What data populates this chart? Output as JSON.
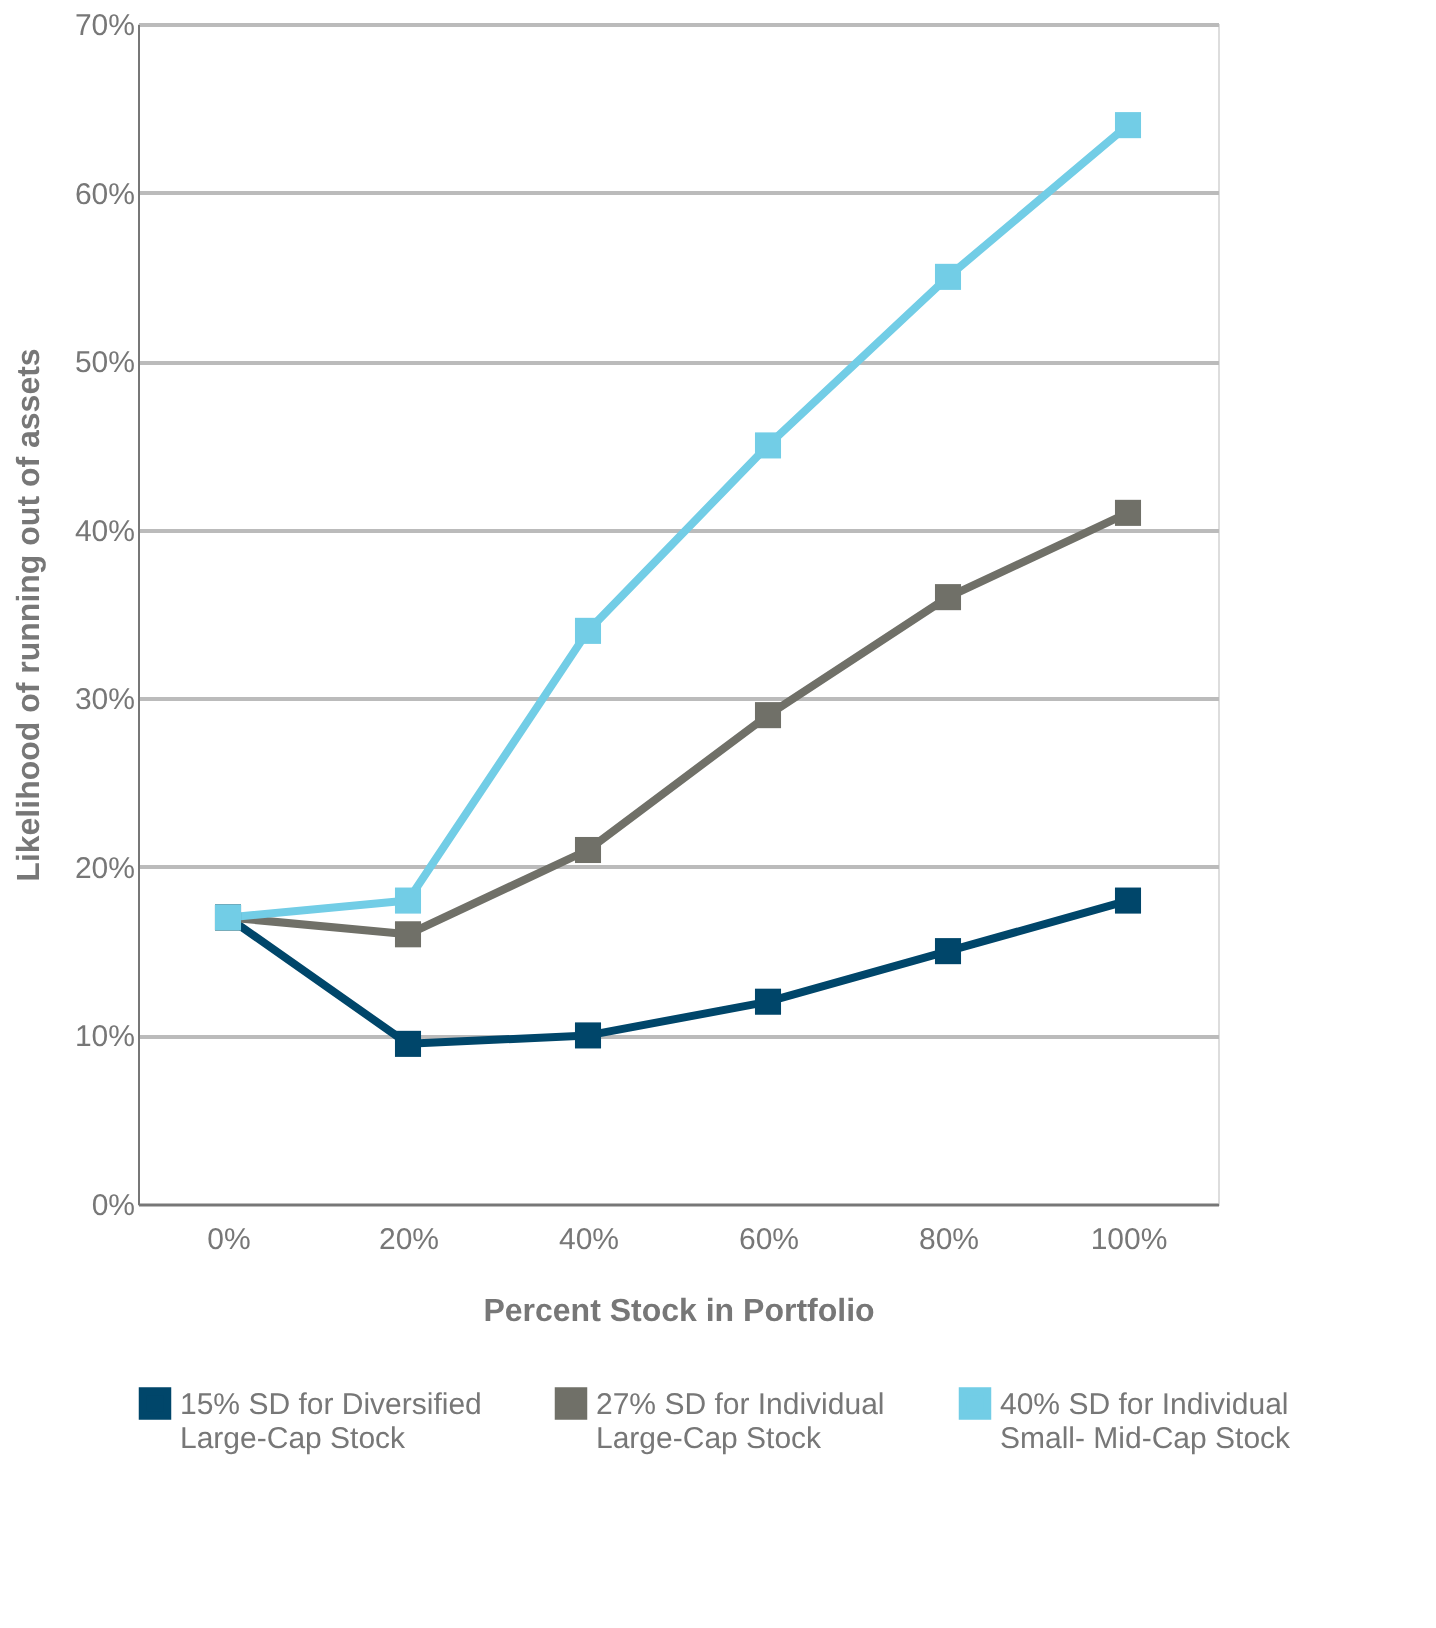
{
  "chart_data": {
    "type": "line",
    "xlabel": "Percent Stock in Portfolio",
    "ylabel": "Likelihood of running out of assets",
    "categories": [
      "0%",
      "20%",
      "40%",
      "60%",
      "80%",
      "100%"
    ],
    "series": [
      {
        "name": "15% SD for Diversified Large-Cap Stock",
        "color": "#00466a",
        "values": [
          17,
          9.5,
          10,
          12,
          15,
          18
        ]
      },
      {
        "name": "27% SD for Individual Large-Cap Stock",
        "color": "#707068",
        "values": [
          17,
          16,
          21,
          29,
          36,
          41
        ]
      },
      {
        "name": "40% SD for Individual Small- Mid-Cap Stock",
        "color": "#72cde6",
        "values": [
          17,
          18,
          34,
          45,
          55,
          64
        ]
      }
    ],
    "ylim": [
      0,
      70
    ],
    "yticks": [
      {
        "value": 0,
        "label": "0%"
      },
      {
        "value": 10,
        "label": "10%"
      },
      {
        "value": 20,
        "label": "20%"
      },
      {
        "value": 30,
        "label": "30%"
      },
      {
        "value": 40,
        "label": "40%"
      },
      {
        "value": 50,
        "label": "50%"
      },
      {
        "value": 60,
        "label": "60%"
      },
      {
        "value": 70,
        "label": "70%"
      }
    ],
    "grid": "y",
    "legend": "bottom",
    "marker": "square",
    "line_style": "solid"
  }
}
